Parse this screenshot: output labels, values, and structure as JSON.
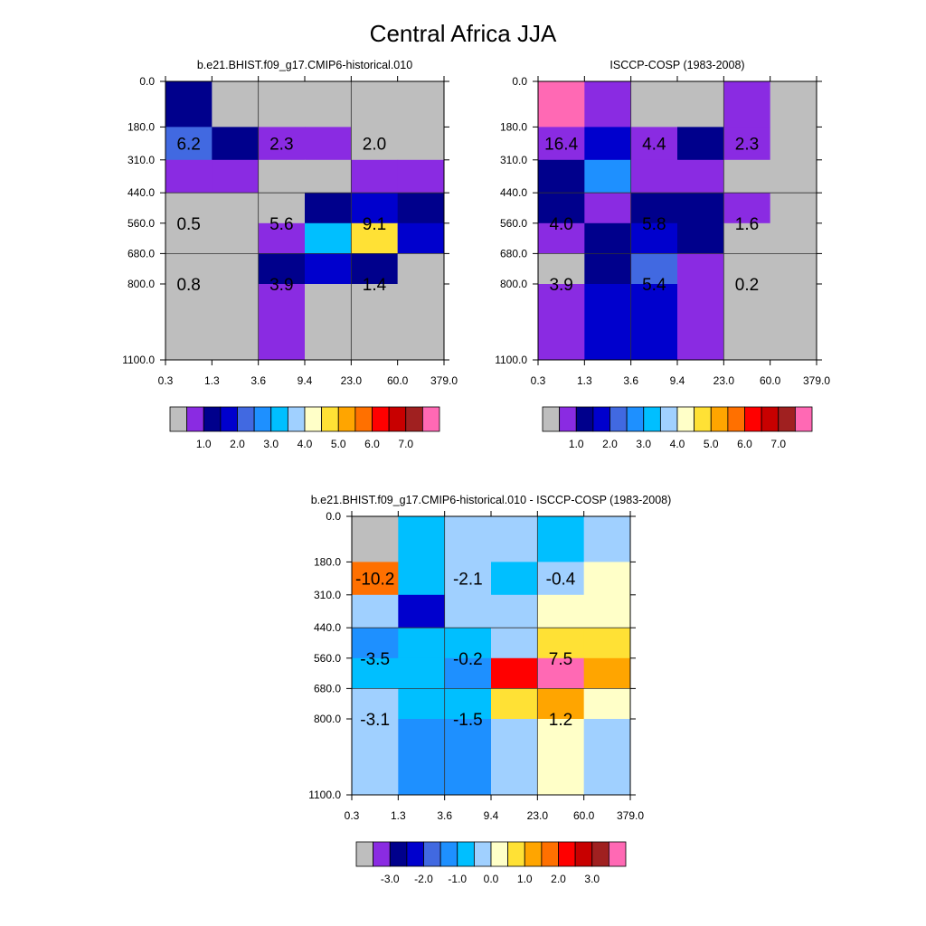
{
  "page_title": "Central Africa JJA",
  "chart_data": [
    {
      "type": "heatmap",
      "title": "b.e21.BHIST.f09_g17.CMIP6-historical.010",
      "x_ticks": [
        "0.3",
        "1.3",
        "3.6",
        "9.4",
        "23.0",
        "60.0",
        "379.0"
      ],
      "y_ticks": [
        "0.0",
        "180.0",
        "310.0",
        "440.0",
        "560.0",
        "680.0",
        "800.0",
        "1100.0"
      ],
      "cells": [
        [
          "#00008c",
          "#bebebe",
          "#bebebe",
          "#bebebe",
          "#bebebe",
          "#bebebe"
        ],
        [
          "#4169e1",
          "#00008c",
          "#8a2be2",
          "#8a2be2",
          "#bebebe",
          "#bebebe"
        ],
        [
          "#8a2be2",
          "#8a2be2",
          "#bebebe",
          "#bebebe",
          "#8a2be2",
          "#8a2be2"
        ],
        [
          "#bebebe",
          "#bebebe",
          "#bebebe",
          "#00008c",
          "#0000cd",
          "#00008c"
        ],
        [
          "#bebebe",
          "#bebebe",
          "#8a2be2",
          "#00bfff",
          "#ffe135",
          "#0000cd"
        ],
        [
          "#bebebe",
          "#bebebe",
          "#00008c",
          "#0000cd",
          "#00008c",
          "#bebebe"
        ],
        [
          "#bebebe",
          "#bebebe",
          "#8a2be2",
          "#bebebe",
          "#bebebe",
          "#bebebe"
        ]
      ],
      "annotations": [
        {
          "label": "6.2",
          "col": 0.5,
          "row": 1.5
        },
        {
          "label": "2.3",
          "col": 2.5,
          "row": 1.5
        },
        {
          "label": "2.0",
          "col": 4.5,
          "row": 1.5
        },
        {
          "label": "0.5",
          "col": 0.5,
          "row": 4.0
        },
        {
          "label": "5.6",
          "col": 2.5,
          "row": 4.0
        },
        {
          "label": "9.1",
          "col": 4.5,
          "row": 4.0
        },
        {
          "label": "0.8",
          "col": 0.5,
          "row": 6.0
        },
        {
          "label": "3.9",
          "col": 2.5,
          "row": 6.0
        },
        {
          "label": "1.4",
          "col": 4.5,
          "row": 6.0
        }
      ],
      "colorbar": {
        "colors": [
          "#bebebe",
          "#8a2be2",
          "#00008c",
          "#0000cd",
          "#4169e1",
          "#1e90ff",
          "#00bfff",
          "#a0d0ff",
          "#ffffc8",
          "#ffe135",
          "#ffa500",
          "#ff7000",
          "#ff0000",
          "#c80000",
          "#a02020",
          "#ff69b4"
        ],
        "labels": [
          "1.0",
          "2.0",
          "3.0",
          "4.0",
          "5.0",
          "6.0",
          "7.0"
        ],
        "label_first_box": 1
      }
    },
    {
      "type": "heatmap",
      "title": "ISCCP-COSP (1983-2008)",
      "x_ticks": [
        "0.3",
        "1.3",
        "3.6",
        "9.4",
        "23.0",
        "60.0",
        "379.0"
      ],
      "y_ticks": [
        "0.0",
        "180.0",
        "310.0",
        "440.0",
        "560.0",
        "680.0",
        "800.0",
        "1100.0"
      ],
      "cells": [
        [
          "#ff69b4",
          "#8a2be2",
          "#bebebe",
          "#bebebe",
          "#8a2be2",
          "#bebebe"
        ],
        [
          "#8a2be2",
          "#0000cd",
          "#8a2be2",
          "#00008c",
          "#8a2be2",
          "#bebebe"
        ],
        [
          "#00008c",
          "#1e90ff",
          "#8a2be2",
          "#8a2be2",
          "#bebebe",
          "#bebebe"
        ],
        [
          "#00008c",
          "#8a2be2",
          "#00008c",
          "#00008c",
          "#8a2be2",
          "#bebebe"
        ],
        [
          "#8a2be2",
          "#00008c",
          "#0000cd",
          "#00008c",
          "#bebebe",
          "#bebebe"
        ],
        [
          "#bebebe",
          "#00008c",
          "#4169e1",
          "#8a2be2",
          "#bebebe",
          "#bebebe"
        ],
        [
          "#8a2be2",
          "#0000cd",
          "#0000cd",
          "#8a2be2",
          "#bebebe",
          "#bebebe"
        ]
      ],
      "annotations": [
        {
          "label": "16.4",
          "col": 0.5,
          "row": 1.5
        },
        {
          "label": "4.4",
          "col": 2.5,
          "row": 1.5
        },
        {
          "label": "2.3",
          "col": 4.5,
          "row": 1.5
        },
        {
          "label": "4.0",
          "col": 0.5,
          "row": 4.0
        },
        {
          "label": "5.8",
          "col": 2.5,
          "row": 4.0
        },
        {
          "label": "1.6",
          "col": 4.5,
          "row": 4.0
        },
        {
          "label": "3.9",
          "col": 0.5,
          "row": 6.0
        },
        {
          "label": "5.4",
          "col": 2.5,
          "row": 6.0
        },
        {
          "label": "0.2",
          "col": 4.5,
          "row": 6.0
        }
      ],
      "colorbar": {
        "colors": [
          "#bebebe",
          "#8a2be2",
          "#00008c",
          "#0000cd",
          "#4169e1",
          "#1e90ff",
          "#00bfff",
          "#a0d0ff",
          "#ffffc8",
          "#ffe135",
          "#ffa500",
          "#ff7000",
          "#ff0000",
          "#c80000",
          "#a02020",
          "#ff69b4"
        ],
        "labels": [
          "1.0",
          "2.0",
          "3.0",
          "4.0",
          "5.0",
          "6.0",
          "7.0"
        ],
        "label_first_box": 1
      }
    },
    {
      "type": "heatmap",
      "title": "b.e21.BHIST.f09_g17.CMIP6-historical.010 - ISCCP-COSP (1983-2008)",
      "x_ticks": [
        "0.3",
        "1.3",
        "3.6",
        "9.4",
        "23.0",
        "60.0",
        "379.0"
      ],
      "y_ticks": [
        "0.0",
        "180.0",
        "310.0",
        "440.0",
        "560.0",
        "680.0",
        "800.0",
        "1100.0"
      ],
      "cells": [
        [
          "#bebebe",
          "#00bfff",
          "#a0d0ff",
          "#a0d0ff",
          "#00bfff",
          "#a0d0ff"
        ],
        [
          "#ff7000",
          "#00bfff",
          "#a0d0ff",
          "#00bfff",
          "#a0d0ff",
          "#ffffc8"
        ],
        [
          "#a0d0ff",
          "#0000cd",
          "#a0d0ff",
          "#a0d0ff",
          "#ffffc8",
          "#ffffc8"
        ],
        [
          "#1e90ff",
          "#00bfff",
          "#00bfff",
          "#a0d0ff",
          "#ffe135",
          "#ffe135"
        ],
        [
          "#00bfff",
          "#00bfff",
          "#1e90ff",
          "#ff0000",
          "#ff69b4",
          "#ffa500"
        ],
        [
          "#a0d0ff",
          "#00bfff",
          "#00bfff",
          "#ffe135",
          "#ffa500",
          "#ffffc8"
        ],
        [
          "#a0d0ff",
          "#1e90ff",
          "#1e90ff",
          "#a0d0ff",
          "#ffffc8",
          "#a0d0ff"
        ]
      ],
      "annotations": [
        {
          "label": "-10.2",
          "col": 0.5,
          "row": 1.5
        },
        {
          "label": "-2.1",
          "col": 2.5,
          "row": 1.5
        },
        {
          "label": "-0.4",
          "col": 4.5,
          "row": 1.5
        },
        {
          "label": "-3.5",
          "col": 0.5,
          "row": 4.0
        },
        {
          "label": "-0.2",
          "col": 2.5,
          "row": 4.0
        },
        {
          "label": "7.5",
          "col": 4.5,
          "row": 4.0
        },
        {
          "label": "-3.1",
          "col": 0.5,
          "row": 6.0
        },
        {
          "label": "-1.5",
          "col": 2.5,
          "row": 6.0
        },
        {
          "label": "1.2",
          "col": 4.5,
          "row": 6.0
        }
      ],
      "colorbar": {
        "colors": [
          "#bebebe",
          "#8a2be2",
          "#00008c",
          "#0000cd",
          "#4169e1",
          "#1e90ff",
          "#00bfff",
          "#a0d0ff",
          "#ffffc8",
          "#ffe135",
          "#ffa500",
          "#ff7000",
          "#ff0000",
          "#c80000",
          "#a02020",
          "#ff69b4"
        ],
        "labels": [
          "-3.0",
          "-2.0",
          "-1.0",
          "0.0",
          "1.0",
          "2.0",
          "3.0"
        ],
        "label_first_box": 1
      }
    }
  ]
}
